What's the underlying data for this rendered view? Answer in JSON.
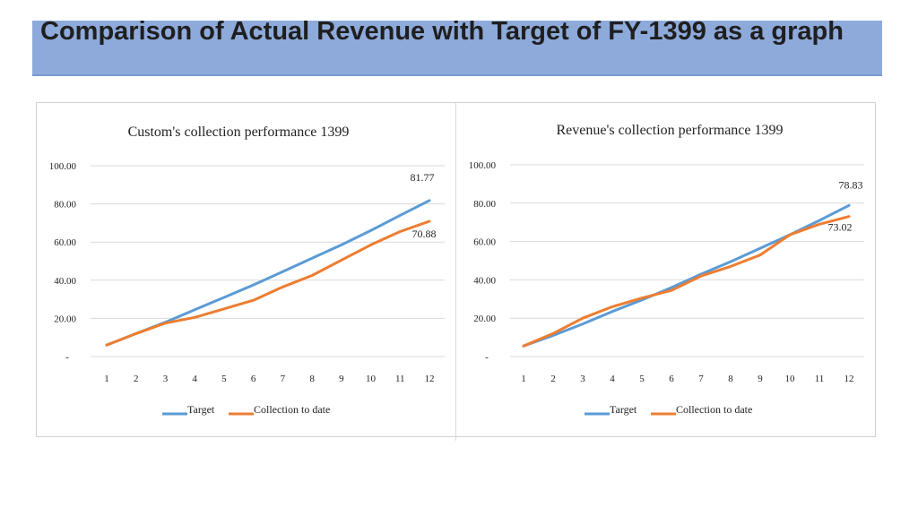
{
  "slide": {
    "title": "Comparison of Actual Revenue with Target of FY-1399 as a graph"
  },
  "chart_data": [
    {
      "type": "line",
      "title": "Custom's collection performance 1399",
      "xlabel": "",
      "ylabel": "",
      "x": [
        1,
        2,
        3,
        4,
        5,
        6,
        7,
        8,
        9,
        10,
        11,
        12
      ],
      "ylim": [
        0,
        100
      ],
      "yticks": [
        "-",
        "20.00",
        "40.00",
        "60.00",
        "80.00",
        "100.00"
      ],
      "grid": true,
      "legend": "bottom",
      "series": [
        {
          "name": "Target",
          "color": "#5b9bd5",
          "values": [
            6,
            12,
            18,
            24.5,
            31,
            37.5,
            44.5,
            51.5,
            58.5,
            66,
            74,
            81.77
          ]
        },
        {
          "name": "Collection to date",
          "color": "#ed7d31",
          "values": [
            6,
            12,
            17.5,
            20.5,
            25,
            29.5,
            36.5,
            42.5,
            50.5,
            58.5,
            65.5,
            70.88
          ]
        }
      ],
      "annotations": [
        "81.77",
        "70.88"
      ]
    },
    {
      "type": "line",
      "title": "Revenue's collection performance 1399",
      "xlabel": "",
      "ylabel": "",
      "x": [
        1,
        2,
        3,
        4,
        5,
        6,
        7,
        8,
        9,
        10,
        11,
        12
      ],
      "ylim": [
        0,
        100
      ],
      "yticks": [
        "-",
        "20.00",
        "40.00",
        "60.00",
        "80.00",
        "100.00"
      ],
      "grid": true,
      "legend": "bottom",
      "series": [
        {
          "name": "Target",
          "color": "#5b9bd5",
          "values": [
            5.5,
            11,
            17,
            23.5,
            29.5,
            36,
            43,
            49.5,
            56.5,
            63.5,
            71,
            78.83
          ]
        },
        {
          "name": "Collection to date",
          "color": "#ed7d31",
          "values": [
            5.5,
            12,
            20,
            26,
            30.5,
            34.5,
            42,
            47,
            53,
            63.5,
            69,
            73.02
          ]
        }
      ],
      "annotations": [
        "78.83",
        "73.02"
      ]
    }
  ]
}
